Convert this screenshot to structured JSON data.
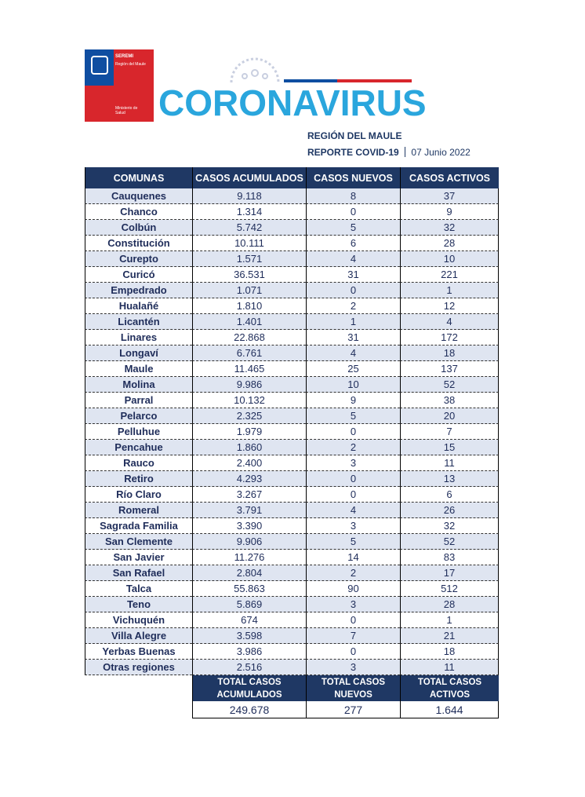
{
  "header": {
    "logo": {
      "top": "SEREMI",
      "subtitle": "Región del Maule",
      "bottom": "Ministerio de Salud"
    },
    "title": "CORONAVIRUS",
    "region": "REGIÓN DEL MAULE",
    "report": "REPORTE COVID-19",
    "date": "07 Junio 2022"
  },
  "table": {
    "columns": [
      "COMUNAS",
      "CASOS ACUMULADOS",
      "CASOS NUEVOS",
      "CASOS ACTIVOS"
    ],
    "rows": [
      [
        "Cauquenes",
        "9.118",
        "8",
        "37"
      ],
      [
        "Chanco",
        "1.314",
        "0",
        "9"
      ],
      [
        "Colbún",
        "5.742",
        "5",
        "32"
      ],
      [
        "Constitución",
        "10.111",
        "6",
        "28"
      ],
      [
        "Curepto",
        "1.571",
        "4",
        "10"
      ],
      [
        "Curicó",
        "36.531",
        "31",
        "221"
      ],
      [
        "Empedrado",
        "1.071",
        "0",
        "1"
      ],
      [
        "Hualañé",
        "1.810",
        "2",
        "12"
      ],
      [
        "Licantén",
        "1.401",
        "1",
        "4"
      ],
      [
        "Linares",
        "22.868",
        "31",
        "172"
      ],
      [
        "Longaví",
        "6.761",
        "4",
        "18"
      ],
      [
        "Maule",
        "11.465",
        "25",
        "137"
      ],
      [
        "Molina",
        "9.986",
        "10",
        "52"
      ],
      [
        "Parral",
        "10.132",
        "9",
        "38"
      ],
      [
        "Pelarco",
        "2.325",
        "5",
        "20"
      ],
      [
        "Pelluhue",
        "1.979",
        "0",
        "7"
      ],
      [
        "Pencahue",
        "1.860",
        "2",
        "15"
      ],
      [
        "Rauco",
        "2.400",
        "3",
        "11"
      ],
      [
        "Retiro",
        "4.293",
        "0",
        "13"
      ],
      [
        "Río Claro",
        "3.267",
        "0",
        "6"
      ],
      [
        "Romeral",
        "3.791",
        "4",
        "26"
      ],
      [
        "Sagrada Familia",
        "3.390",
        "3",
        "32"
      ],
      [
        "San Clemente",
        "9.906",
        "5",
        "52"
      ],
      [
        "San Javier",
        "11.276",
        "14",
        "83"
      ],
      [
        "San Rafael",
        "2.804",
        "2",
        "17"
      ],
      [
        "Talca",
        "55.863",
        "90",
        "512"
      ],
      [
        "Teno",
        "5.869",
        "3",
        "28"
      ],
      [
        "Vichuquén",
        "674",
        "0",
        "1"
      ],
      [
        "Villa Alegre",
        "3.598",
        "7",
        "21"
      ],
      [
        "Yerbas Buenas",
        "3.986",
        "0",
        "18"
      ],
      [
        "Otras regiones",
        "2.516",
        "3",
        "11"
      ]
    ]
  },
  "totals": {
    "labels": [
      "TOTAL CASOS ACUMULADOS",
      "TOTAL CASOS NUEVOS",
      "TOTAL CASOS ACTIVOS"
    ],
    "values": [
      "249.678",
      "277",
      "1.644"
    ]
  }
}
